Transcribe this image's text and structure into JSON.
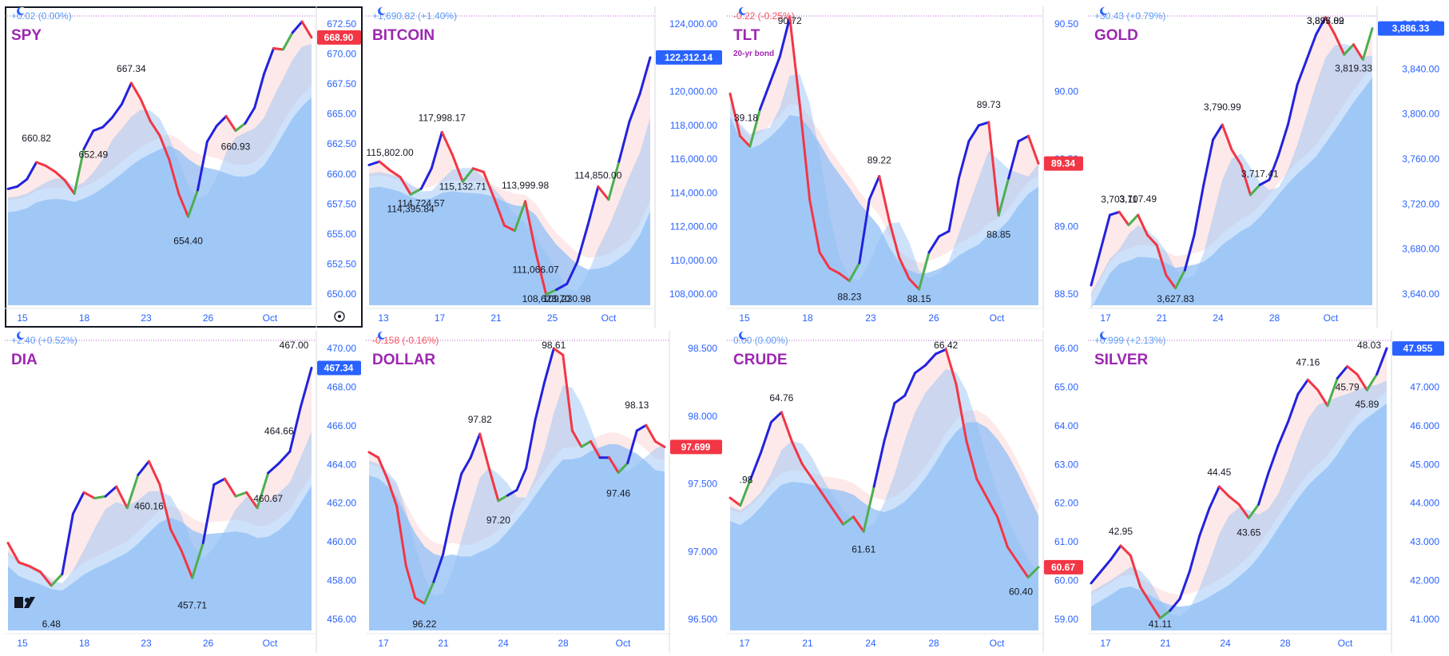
{
  "colors": {
    "axis_text": "#2962ff",
    "label_text": "#131722",
    "title": "#9c27b0",
    "pos_change": "#5b9cf6",
    "neg_change": "#f7525f",
    "up_line": "#2222dd",
    "down_line": "#f23645",
    "turn_line": "#4caf50",
    "price_up_bg": "#2962ff",
    "price_down_bg": "#f23645",
    "fill_blue": "#90bff5",
    "fill_red": "#fde4e4"
  },
  "panels": [
    {
      "id": "spy",
      "title": "SPY",
      "change": "+0.02 (0.00%)",
      "change_dir": "up",
      "y_ticks": [
        "672.50",
        "670.00",
        "667.50",
        "665.00",
        "662.50",
        "660.00",
        "657.50",
        "655.00",
        "652.50",
        "650.00"
      ],
      "x_ticks": [
        "15",
        "18",
        "23",
        "26",
        "Oct"
      ],
      "price": "668.90",
      "price_dir": "down",
      "annotations": [
        "667.34",
        "660.82",
        "652.49",
        "654.40",
        "660.93"
      ],
      "chart_data": {
        "type": "line",
        "symbol": "SPY",
        "ylim": [
          649,
          673
        ],
        "series": [
          {
            "name": "close",
            "values": [
              658.6,
              658.8,
              659.4,
              660.8,
              660.5,
              660.0,
              659.3,
              658.2,
              661.9,
              663.4,
              663.7,
              664.5,
              665.6,
              667.34,
              666.0,
              664.2,
              663.0,
              661.0,
              658.2,
              656.3,
              658.5,
              662.5,
              663.8,
              664.6,
              663.4,
              664.0,
              665.3,
              668.1,
              670.2,
              670.1,
              671.5,
              672.4,
              671.1
            ]
          }
        ]
      }
    },
    {
      "id": "bitcoin",
      "title": "BITCOIN",
      "change": "+1,690.82 (+1.40%)",
      "change_dir": "up",
      "y_ticks": [
        "124,000.00",
        "122,000.00",
        "120,000.00",
        "118,000.00",
        "116,000.00",
        "114,000.00",
        "112,000.00",
        "110,000.00",
        "108,000.00"
      ],
      "x_ticks": [
        "13",
        "17",
        "21",
        "25",
        "Oct"
      ],
      "price": "122,312.14",
      "price_dir": "up",
      "annotations": [
        "117,998.17",
        "115,802.00",
        "114,395.84",
        "114,724.57",
        "115,132.71",
        "113,999.98",
        "111,066.07",
        "108,623.70",
        "109,230.98",
        "114,850.00"
      ],
      "chart_data": {
        "type": "line",
        "symbol": "BITCOIN",
        "ylim": [
          108000,
          124800
        ],
        "series": [
          {
            "name": "close",
            "values": [
              116100,
              116300,
              115802,
              115400,
              114395,
              114724,
              115900,
              117998,
              116700,
              115132,
              115900,
              115700,
              114200,
              112600,
              112300,
              113999,
              111066,
              108623,
              108900,
              109230,
              110500,
              112600,
              114850,
              114100,
              116300,
              118600,
              120200,
              122312
            ]
          }
        ]
      }
    },
    {
      "id": "tlt",
      "title": "TLT",
      "subtitle": "20-yr bond",
      "change": "-0.22 (-0.25%)",
      "change_dir": "down",
      "y_ticks": [
        "90.50",
        "90.00",
        "89.50",
        "89.00",
        "88.50"
      ],
      "x_ticks": [
        "15",
        "18",
        "23",
        "26",
        "Oct"
      ],
      "price": "89.34",
      "price_dir": "down",
      "annotations": [
        "90.72",
        "39.18",
        "88.23",
        "89.22",
        "88.15",
        "89.73",
        "88.85"
      ],
      "chart_data": {
        "type": "line",
        "symbol": "TLT",
        "ylim": [
          88.0,
          90.75
        ],
        "series": [
          {
            "name": "close",
            "values": [
              90.0,
              89.6,
              89.5,
              89.85,
              90.1,
              90.35,
              90.72,
              89.9,
              89.0,
              88.5,
              88.35,
              88.3,
              88.23,
              88.4,
              89.0,
              89.22,
              88.8,
              88.45,
              88.25,
              88.15,
              88.5,
              88.65,
              88.7,
              89.2,
              89.55,
              89.7,
              89.73,
              88.85,
              89.2,
              89.55,
              89.6,
              89.34
            ]
          }
        ]
      }
    },
    {
      "id": "gold",
      "title": "GOLD",
      "change": "+30.43 (+0.79%)",
      "change_dir": "up",
      "y_ticks": [
        "3,880.00",
        "3,840.00",
        "3,800.00",
        "3,760.00",
        "3,720.00",
        "3,680.00",
        "3,640.00"
      ],
      "x_ticks": [
        "17",
        "21",
        "24",
        "28",
        "Oct"
      ],
      "price": "3,886.33",
      "price_dir": "up",
      "annotations": [
        "3,895.89",
        "3,897.02",
        "3,790.99",
        "3,703.11",
        "3,707.49",
        "3,717.41",
        "3,627.83",
        "3,819.33"
      ],
      "chart_data": {
        "type": "line",
        "symbol": "GOLD",
        "ylim": [
          3610,
          3900
        ],
        "series": [
          {
            "name": "close",
            "values": [
              3630,
              3665,
              3700,
              3703,
              3690,
              3700,
              3680,
              3670,
              3640,
              3627,
              3645,
              3680,
              3730,
              3775,
              3790,
              3765,
              3750,
              3720,
              3730,
              3735,
              3760,
              3790,
              3830,
              3855,
              3880,
              3897,
              3880,
              3860,
              3870,
              3855,
              3886
            ]
          }
        ]
      }
    },
    {
      "id": "dia",
      "title": "DIA",
      "change": "+2.40 (+0.52%)",
      "change_dir": "up",
      "y_ticks": [
        "470.00",
        "468.00",
        "466.00",
        "464.00",
        "462.00",
        "460.00",
        "458.00",
        "456.00"
      ],
      "x_ticks": [
        "15",
        "18",
        "23",
        "26",
        "Oct"
      ],
      "price": "467.34",
      "price_dir": "up",
      "annotations": [
        "467.00",
        "464.66",
        "460.16",
        "457.71",
        "460.67",
        "6.48"
      ],
      "chart_data": {
        "type": "line",
        "symbol": "DIA",
        "ylim": [
          455.5,
          470.5
        ],
        "series": [
          {
            "name": "close",
            "values": [
              460.0,
              459.0,
              458.8,
              458.5,
              457.8,
              458.4,
              461.5,
              462.6,
              462.3,
              462.4,
              462.9,
              461.8,
              463.5,
              464.2,
              463.0,
              460.7,
              459.6,
              458.2,
              460.0,
              463.0,
              463.3,
              462.4,
              462.6,
              461.8,
              463.6,
              464.1,
              464.7,
              467.0,
              469.0
            ]
          }
        ]
      }
    },
    {
      "id": "dollar",
      "title": "DOLLAR",
      "change": "-0.158 (-0.16%)",
      "change_dir": "down",
      "y_ticks": [
        "98.500",
        "98.000",
        "97.500",
        "97.000",
        "96.500"
      ],
      "x_ticks": [
        "17",
        "21",
        "24",
        "28",
        "Oct"
      ],
      "price": "97.699",
      "price_dir": "down",
      "annotations": [
        "98.61",
        "97.82",
        "97.20",
        "98.13",
        "97.46",
        "96.22"
      ],
      "chart_data": {
        "type": "line",
        "symbol": "DOLLAR",
        "ylim": [
          96.0,
          98.7
        ],
        "series": [
          {
            "name": "close",
            "values": [
              97.65,
              97.6,
              97.4,
              97.15,
              96.6,
              96.3,
              96.25,
              96.45,
              96.7,
              97.1,
              97.45,
              97.6,
              97.82,
              97.5,
              97.2,
              97.25,
              97.3,
              97.5,
              97.95,
              98.3,
              98.61,
              98.55,
              97.85,
              97.7,
              97.75,
              97.6,
              97.6,
              97.46,
              97.55,
              97.85,
              97.9,
              97.75,
              97.699
            ]
          }
        ]
      }
    },
    {
      "id": "crude",
      "title": "CRUDE",
      "change": "0.00 (0.00%)",
      "change_dir": "up",
      "y_ticks": [
        "66.00",
        "65.00",
        "64.00",
        "63.00",
        "62.00",
        "61.00",
        "60.00",
        "59.00"
      ],
      "x_ticks": [
        "17",
        "21",
        "24",
        "28",
        "Oct"
      ],
      "price": "60.67",
      "price_dir": "down",
      "annotations": [
        "66.42",
        ".98",
        "64.76",
        "61.61",
        "60.40"
      ],
      "chart_data": {
        "type": "line",
        "symbol": "CRUDE",
        "ylim": [
          59.0,
          66.7
        ],
        "series": [
          {
            "name": "close",
            "values": [
              62.5,
              62.3,
              63.0,
              63.7,
              64.5,
              64.76,
              64.0,
              63.4,
              63.0,
              62.6,
              62.2,
              61.8,
              62.0,
              61.61,
              62.8,
              64.0,
              65.0,
              65.2,
              65.8,
              66.0,
              66.3,
              66.42,
              65.5,
              64.0,
              63.0,
              62.5,
              62.0,
              61.2,
              60.8,
              60.4,
              60.67
            ]
          }
        ]
      }
    },
    {
      "id": "silver",
      "title": "SILVER",
      "change": "+0.999 (+2.13%)",
      "change_dir": "up",
      "y_ticks": [
        "48.000",
        "47.000",
        "46.000",
        "45.000",
        "44.000",
        "43.000",
        "42.000",
        "41.000"
      ],
      "x_ticks": [
        "17",
        "21",
        "24",
        "28",
        "Oct"
      ],
      "price": "47.955",
      "price_dir": "up",
      "annotations": [
        "48.03",
        "47.16",
        "44.45",
        "43.65",
        "45.79",
        "45.89",
        "42.95",
        "41.11"
      ],
      "chart_data": {
        "type": "line",
        "symbol": "SILVER",
        "ylim": [
          40.8,
          48.2
        ],
        "series": [
          {
            "name": "close",
            "values": [
              42.0,
              42.3,
              42.6,
              42.95,
              42.7,
              41.9,
              41.5,
              41.11,
              41.3,
              41.6,
              42.3,
              43.2,
              43.9,
              44.45,
              44.2,
              44.0,
              43.65,
              44.0,
              44.8,
              45.5,
              46.1,
              46.8,
              47.16,
              46.9,
              46.5,
              47.2,
              47.5,
              47.3,
              46.9,
              47.3,
              47.955
            ]
          }
        ]
      }
    }
  ]
}
